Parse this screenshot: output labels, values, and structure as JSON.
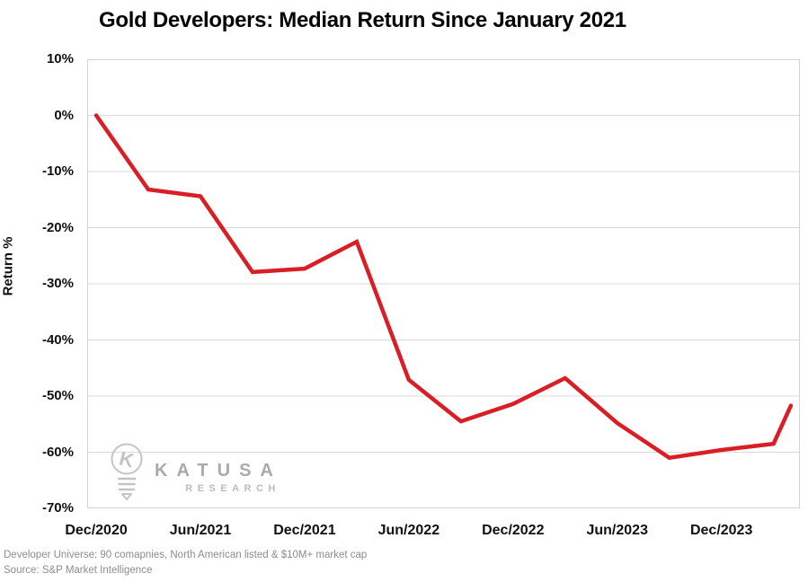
{
  "chart_data": {
    "type": "line",
    "title": "Gold Developers: Median Return Since January 2021",
    "ylabel": "Return %",
    "xlabel": "",
    "ylim": [
      -70,
      10
    ],
    "xlim_months": [
      -0.52,
      40.52
    ],
    "grid": "horizontal-only",
    "legend": "none",
    "y_ticks": [
      10,
      0,
      -10,
      -20,
      -30,
      -40,
      -50,
      -60,
      -70
    ],
    "y_tick_suffix": "%",
    "x_ticks": [
      {
        "month": 0,
        "label": "Dec/2020"
      },
      {
        "month": 6,
        "label": "Jun/2021"
      },
      {
        "month": 12,
        "label": "Dec/2021"
      },
      {
        "month": 18,
        "label": "Jun/2022"
      },
      {
        "month": 24,
        "label": "Dec/2022"
      },
      {
        "month": 30,
        "label": "Jun/2023"
      },
      {
        "month": 36,
        "label": "Dec/2023"
      }
    ],
    "series": [
      {
        "name": "Gold Developers Median Return",
        "color": "#da1e25",
        "points": [
          {
            "period": "Dec/2020",
            "month": 0,
            "return_pct": 0
          },
          {
            "period": "Mar/2021",
            "month": 3,
            "return_pct": -13.2
          },
          {
            "period": "Jun/2021",
            "month": 6,
            "return_pct": -14.4
          },
          {
            "period": "Sep/2021",
            "month": 9,
            "return_pct": -27.9
          },
          {
            "period": "Dec/2021",
            "month": 12,
            "return_pct": -27.3
          },
          {
            "period": "Mar/2022",
            "month": 15,
            "return_pct": -22.5
          },
          {
            "period": "Jun/2022",
            "month": 18,
            "return_pct": -47.1
          },
          {
            "period": "Sep/2022",
            "month": 21,
            "return_pct": -54.5
          },
          {
            "period": "Dec/2022",
            "month": 24,
            "return_pct": -51.4
          },
          {
            "period": "Mar/2023",
            "month": 27,
            "return_pct": -46.8
          },
          {
            "period": "Jun/2023",
            "month": 30,
            "return_pct": -54.8
          },
          {
            "period": "Sep/2023",
            "month": 33,
            "return_pct": -61.0
          },
          {
            "period": "Dec/2023",
            "month": 36,
            "return_pct": -59.6
          },
          {
            "period": "Mar/2024",
            "month": 39,
            "return_pct": -58.5
          },
          {
            "period": "Apr/2024",
            "month": 40,
            "return_pct": -51.7
          }
        ]
      }
    ]
  },
  "watermark": {
    "name_top": "KATUSA",
    "name_bottom": "RESEARCH"
  },
  "footnotes": {
    "universe": "Developer Universe: 90 comapnies, North American listed & $10M+ market cap",
    "source": "Source: S&P Market Intelligence"
  },
  "colors": {
    "line": "#da1e25",
    "grid": "#d9d9d9",
    "plot_border": "#d4d4d4",
    "axis_text": "#111111",
    "footnote_text": "#8c8c8c",
    "watermark_gray": "#c4c4c4"
  }
}
